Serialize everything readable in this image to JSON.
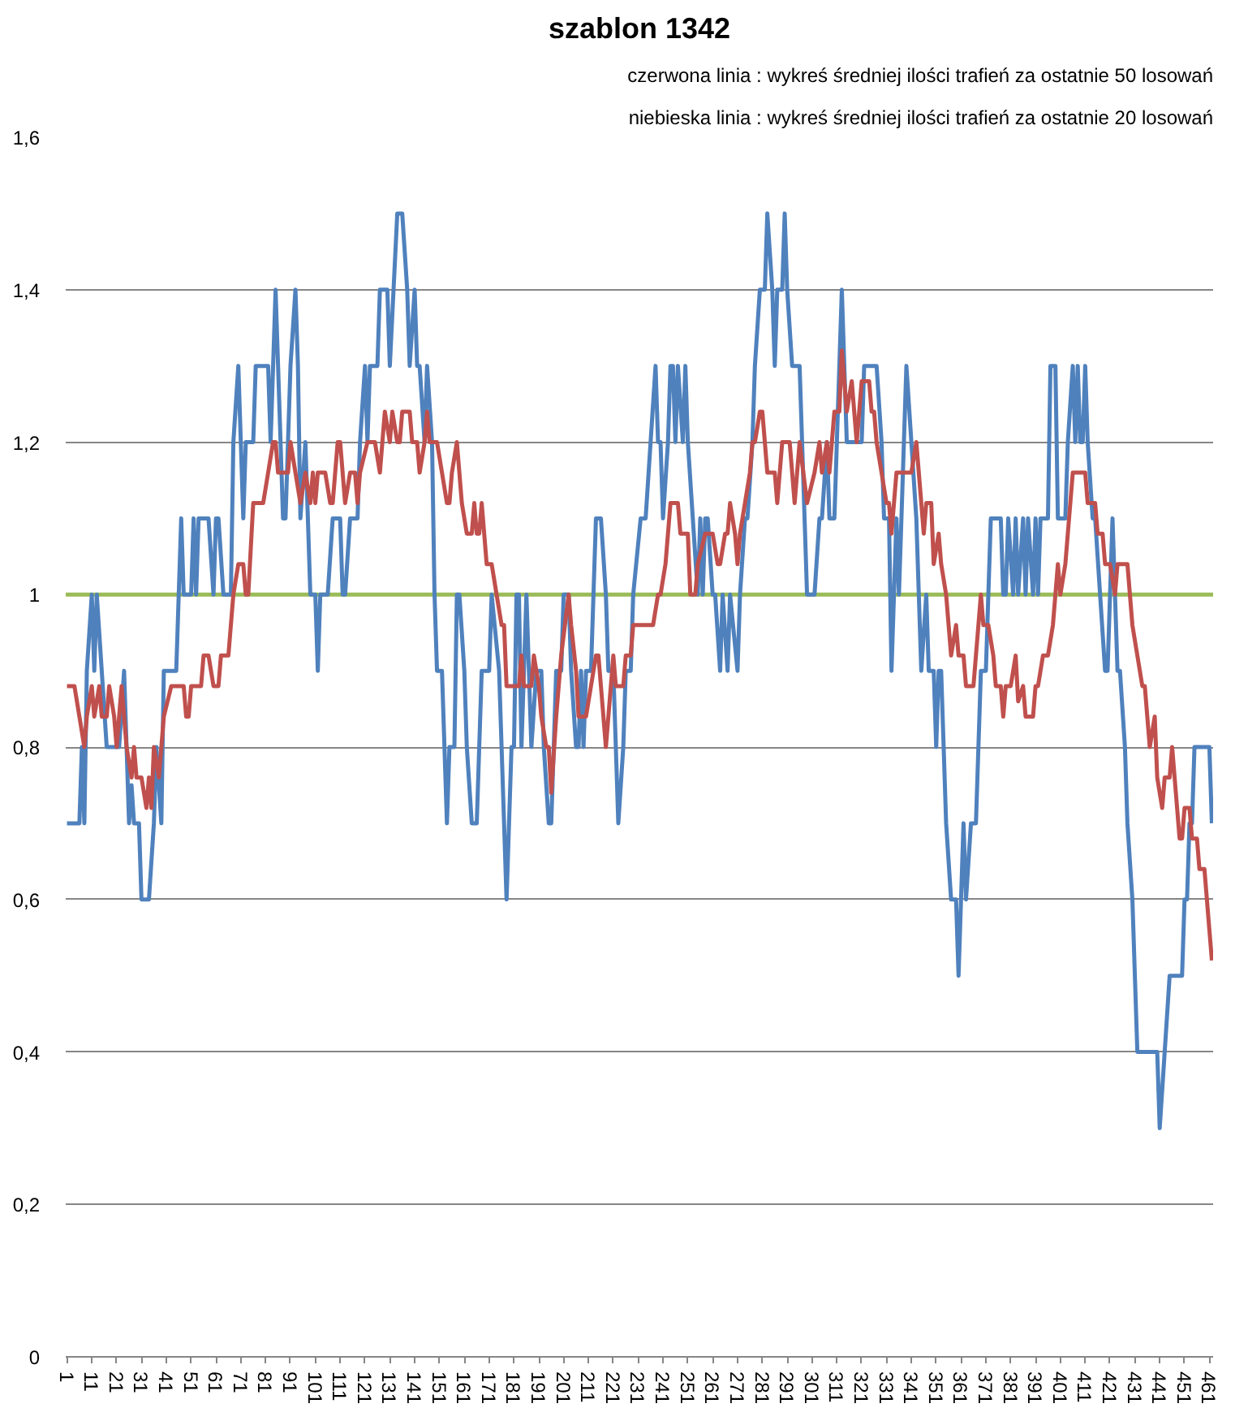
{
  "chart_data": {
    "type": "line",
    "title": "szablon 1342",
    "annotations": [
      "czerwona linia : wykreś średniej ilości trafień za ostatnie 50 losowań",
      "niebieska linia : wykreś średniej ilości trafień za ostatnie 20 losowań"
    ],
    "xlim": [
      0.5,
      462.5
    ],
    "xticks": [
      1,
      11,
      21,
      31,
      41,
      51,
      61,
      71,
      81,
      91,
      101,
      111,
      121,
      131,
      141,
      151,
      161,
      171,
      181,
      191,
      201,
      211,
      221,
      231,
      241,
      251,
      261,
      271,
      281,
      291,
      301,
      311,
      321,
      331,
      341,
      351,
      361,
      371,
      381,
      391,
      401,
      411,
      421,
      431,
      441,
      451,
      461
    ],
    "ylim": [
      0,
      1.6
    ],
    "yticks": [
      0,
      {
        "value": 0.2,
        "label": "0,2"
      },
      {
        "value": 0.4,
        "label": "0,4"
      },
      {
        "value": 0.6,
        "label": "0,6"
      },
      {
        "value": 0.8,
        "label": "0,8"
      },
      1,
      {
        "value": 1.2,
        "label": "1,2"
      },
      {
        "value": 1.4,
        "label": "1,4"
      },
      {
        "value": 1.6,
        "label": "1,6"
      }
    ],
    "grid": "y",
    "ref_lines": [
      {
        "axis": "y",
        "value": 1,
        "color": "#9bbb59"
      }
    ],
    "series": [
      {
        "color": "#4f81bd",
        "x": [
          1,
          6,
          7,
          8,
          9,
          11,
          12,
          13,
          15,
          17,
          22,
          24,
          25,
          26,
          27,
          28,
          30,
          31,
          34,
          36,
          37,
          39,
          40,
          45,
          46,
          47,
          48,
          51,
          52,
          53,
          54,
          58,
          60,
          61,
          62,
          64,
          67,
          68,
          70,
          71,
          72,
          73,
          76,
          77,
          82,
          83,
          85,
          86,
          88,
          89,
          91,
          93,
          94,
          95,
          97,
          98,
          99,
          101,
          102,
          103,
          106,
          108,
          111,
          112,
          113,
          115,
          118,
          119,
          121,
          122,
          123,
          126,
          127,
          130,
          131,
          134,
          136,
          138,
          139,
          141,
          142,
          143,
          145,
          146,
          148,
          149,
          150,
          152,
          154,
          155,
          157,
          158,
          159,
          161,
          162,
          164,
          166,
          167,
          168,
          171,
          172,
          175,
          176,
          178,
          179,
          180,
          181,
          182,
          183,
          184,
          185,
          186,
          188,
          190,
          192,
          193,
          195,
          196,
          198,
          200,
          201,
          203,
          204,
          206,
          207,
          208,
          209,
          210,
          212,
          213,
          214,
          216,
          218,
          219,
          221,
          222,
          223,
          225,
          226,
          228,
          229,
          232,
          234,
          236,
          238,
          239,
          240,
          241,
          243,
          244,
          245,
          246,
          247,
          249,
          250,
          251,
          253,
          255,
          256,
          257,
          258,
          259,
          261,
          262,
          264,
          265,
          267,
          268,
          271,
          272,
          274,
          275,
          277,
          278,
          280,
          282,
          283,
          285,
          286,
          287,
          289,
          290,
          291,
          293,
          296,
          298,
          299,
          302,
          304,
          305,
          307,
          308,
          310,
          311,
          313,
          314,
          315,
          319,
          321,
          322,
          327,
          329,
          330,
          332,
          333,
          335,
          336,
          338,
          339,
          341,
          343,
          344,
          345,
          347,
          348,
          350,
          351,
          352,
          353,
          354,
          355,
          357,
          359,
          360,
          361,
          362,
          363,
          365,
          367,
          369,
          371,
          373,
          377,
          378,
          379,
          380,
          382,
          383,
          384,
          386,
          387,
          388,
          390,
          391,
          392,
          393,
          396,
          397,
          399,
          400,
          403,
          404,
          406,
          407,
          408,
          409,
          410,
          411,
          412,
          414,
          415,
          417,
          419,
          420,
          422,
          423,
          424,
          425,
          427,
          428,
          430,
          432,
          436,
          440,
          441,
          443,
          445,
          446,
          447,
          448,
          449,
          450,
          451,
          452,
          453,
          454,
          455,
          456,
          457,
          458,
          459,
          460,
          461,
          462
        ],
        "values": [
          0.7,
          0.7,
          0.8,
          0.7,
          0.9,
          1.0,
          0.9,
          1.0,
          0.9,
          0.8,
          0.8,
          0.9,
          0.8,
          0.7,
          0.75,
          0.7,
          0.7,
          0.6,
          0.6,
          0.7,
          0.8,
          0.7,
          0.9,
          0.9,
          1.0,
          1.1,
          1.0,
          1.0,
          1.1,
          1.0,
          1.1,
          1.1,
          1.0,
          1.1,
          1.1,
          1.0,
          1.0,
          1.2,
          1.3,
          1.2,
          1.1,
          1.2,
          1.2,
          1.3,
          1.3,
          1.2,
          1.4,
          1.3,
          1.1,
          1.1,
          1.3,
          1.4,
          1.3,
          1.1,
          1.2,
          1.1,
          1.0,
          1.0,
          0.9,
          1.0,
          1.0,
          1.1,
          1.1,
          1.0,
          1.0,
          1.1,
          1.1,
          1.2,
          1.3,
          1.2,
          1.3,
          1.3,
          1.4,
          1.4,
          1.3,
          1.5,
          1.5,
          1.4,
          1.3,
          1.4,
          1.3,
          1.3,
          1.2,
          1.3,
          1.2,
          1.0,
          0.9,
          0.9,
          0.7,
          0.8,
          0.8,
          1.0,
          1.0,
          0.9,
          0.8,
          0.7,
          0.7,
          0.8,
          0.9,
          0.9,
          1.0,
          0.9,
          0.8,
          0.6,
          0.7,
          0.8,
          0.8,
          1.0,
          1.0,
          0.8,
          0.9,
          1.0,
          0.8,
          0.9,
          0.9,
          0.8,
          0.7,
          0.7,
          0.9,
          0.9,
          1.0,
          1.0,
          0.9,
          0.8,
          0.8,
          0.9,
          0.8,
          0.9,
          0.9,
          1.0,
          1.1,
          1.1,
          1.0,
          0.9,
          0.9,
          0.8,
          0.7,
          0.8,
          0.9,
          0.9,
          1.0,
          1.1,
          1.1,
          1.2,
          1.3,
          1.2,
          1.2,
          1.1,
          1.2,
          1.3,
          1.3,
          1.2,
          1.3,
          1.2,
          1.3,
          1.2,
          1.1,
          1.0,
          1.1,
          1.0,
          1.1,
          1.1,
          1.0,
          1.0,
          0.9,
          1.0,
          0.9,
          1.0,
          0.9,
          1.0,
          1.1,
          1.1,
          1.2,
          1.3,
          1.4,
          1.4,
          1.5,
          1.4,
          1.3,
          1.4,
          1.4,
          1.5,
          1.4,
          1.3,
          1.3,
          1.1,
          1.0,
          1.0,
          1.1,
          1.1,
          1.2,
          1.1,
          1.1,
          1.2,
          1.4,
          1.3,
          1.2,
          1.2,
          1.2,
          1.3,
          1.3,
          1.2,
          1.1,
          1.1,
          0.9,
          1.1,
          1.0,
          1.2,
          1.3,
          1.2,
          1.1,
          1.0,
          0.9,
          1.0,
          0.9,
          0.9,
          0.8,
          0.9,
          0.9,
          0.8,
          0.7,
          0.6,
          0.6,
          0.5,
          0.6,
          0.7,
          0.6,
          0.7,
          0.7,
          0.9,
          0.9,
          1.1,
          1.1,
          1.0,
          1.0,
          1.1,
          1.0,
          1.1,
          1.0,
          1.1,
          1.0,
          1.1,
          1.0,
          1.1,
          1.0,
          1.1,
          1.1,
          1.3,
          1.3,
          1.1,
          1.1,
          1.2,
          1.3,
          1.2,
          1.3,
          1.2,
          1.2,
          1.3,
          1.2,
          1.1,
          1.1,
          1.0,
          0.9,
          0.9,
          1.1,
          1.0,
          0.9,
          0.9,
          0.8,
          0.7,
          0.6,
          0.4,
          0.4,
          0.4,
          0.3,
          0.4,
          0.5,
          0.5,
          0.5,
          0.5,
          0.5,
          0.5,
          0.6,
          0.6,
          0.7,
          0.7,
          0.8,
          0.8,
          0.8,
          0.8,
          0.8,
          0.8,
          0.8,
          0.7
        ]
      },
      {
        "color": "#c0504d",
        "x": [
          1,
          4,
          6,
          8,
          9,
          11,
          12,
          14,
          15,
          17,
          18,
          20,
          21,
          23,
          25,
          27,
          28,
          29,
          31,
          33,
          34,
          35,
          36,
          38,
          39,
          40,
          43,
          48,
          49,
          50,
          51,
          55,
          56,
          58,
          60,
          62,
          63,
          66,
          68,
          70,
          72,
          73,
          74,
          76,
          80,
          82,
          84,
          85,
          86,
          90,
          91,
          93,
          95,
          97,
          99,
          100,
          101,
          102,
          105,
          107,
          108,
          110,
          111,
          113,
          115,
          117,
          118,
          119,
          122,
          125,
          127,
          128,
          129,
          131,
          132,
          134,
          135,
          136,
          139,
          140,
          142,
          143,
          145,
          146,
          147,
          150,
          152,
          154,
          155,
          156,
          158,
          159,
          160,
          162,
          164,
          165,
          166,
          167,
          168,
          170,
          172,
          174,
          176,
          177,
          178,
          183,
          184,
          185,
          188,
          189,
          191,
          192,
          194,
          195,
          196,
          198,
          200,
          203,
          204,
          206,
          207,
          210,
          212,
          214,
          215,
          216,
          218,
          220,
          221,
          222,
          225,
          226,
          228,
          229,
          237,
          239,
          240,
          242,
          244,
          247,
          248,
          251,
          252,
          254,
          255,
          258,
          261,
          263,
          264,
          266,
          267,
          268,
          270,
          271,
          272,
          274,
          276,
          277,
          278,
          280,
          281,
          283,
          286,
          287,
          288,
          289,
          292,
          293,
          294,
          296,
          299,
          302,
          304,
          305,
          307,
          308,
          310,
          312,
          313,
          315,
          317,
          319,
          320,
          321,
          324,
          325,
          326,
          327,
          329,
          331,
          332,
          333,
          335,
          341,
          343,
          344,
          346,
          347,
          349,
          350,
          352,
          353,
          355,
          356,
          357,
          359,
          360,
          362,
          363,
          366,
          367,
          369,
          370,
          372,
          374,
          375,
          377,
          378,
          379,
          381,
          383,
          384,
          386,
          387,
          390,
          391,
          392,
          394,
          396,
          398,
          399,
          400,
          401,
          403,
          404,
          405,
          406,
          411,
          412,
          415,
          416,
          418,
          419,
          421,
          423,
          424,
          428,
          429,
          430,
          432,
          434,
          435,
          436,
          437,
          439,
          440,
          442,
          443,
          445,
          446,
          447,
          448,
          449,
          450,
          451,
          452,
          453,
          454,
          455,
          456,
          457,
          458,
          459,
          460,
          461,
          462
        ],
        "values": [
          0.88,
          0.88,
          0.84,
          0.8,
          0.84,
          0.88,
          0.84,
          0.88,
          0.84,
          0.84,
          0.88,
          0.84,
          0.8,
          0.88,
          0.8,
          0.76,
          0.8,
          0.76,
          0.76,
          0.72,
          0.76,
          0.72,
          0.8,
          0.76,
          0.8,
          0.84,
          0.88,
          0.88,
          0.84,
          0.84,
          0.88,
          0.88,
          0.92,
          0.92,
          0.88,
          0.88,
          0.92,
          0.92,
          1.0,
          1.04,
          1.04,
          1.0,
          1.0,
          1.12,
          1.12,
          1.16,
          1.2,
          1.2,
          1.16,
          1.16,
          1.2,
          1.16,
          1.12,
          1.16,
          1.12,
          1.16,
          1.12,
          1.16,
          1.16,
          1.12,
          1.12,
          1.2,
          1.2,
          1.12,
          1.16,
          1.16,
          1.12,
          1.16,
          1.2,
          1.2,
          1.16,
          1.2,
          1.24,
          1.2,
          1.24,
          1.2,
          1.2,
          1.24,
          1.24,
          1.2,
          1.2,
          1.16,
          1.2,
          1.24,
          1.2,
          1.2,
          1.16,
          1.12,
          1.12,
          1.16,
          1.2,
          1.16,
          1.12,
          1.08,
          1.08,
          1.12,
          1.08,
          1.08,
          1.12,
          1.04,
          1.04,
          1.0,
          0.96,
          0.96,
          0.88,
          0.88,
          0.92,
          0.88,
          0.88,
          0.92,
          0.88,
          0.84,
          0.8,
          0.8,
          0.74,
          0.84,
          0.92,
          1.0,
          0.96,
          0.9,
          0.84,
          0.84,
          0.88,
          0.92,
          0.92,
          0.88,
          0.8,
          0.88,
          0.92,
          0.88,
          0.88,
          0.92,
          0.92,
          0.96,
          0.96,
          1.0,
          1.0,
          1.04,
          1.12,
          1.12,
          1.08,
          1.08,
          1.0,
          1.0,
          1.04,
          1.08,
          1.08,
          1.04,
          1.04,
          1.08,
          1.08,
          1.12,
          1.08,
          1.04,
          1.08,
          1.12,
          1.16,
          1.2,
          1.2,
          1.24,
          1.24,
          1.16,
          1.16,
          1.12,
          1.16,
          1.2,
          1.2,
          1.16,
          1.12,
          1.2,
          1.12,
          1.16,
          1.2,
          1.16,
          1.2,
          1.16,
          1.24,
          1.24,
          1.32,
          1.24,
          1.28,
          1.2,
          1.24,
          1.28,
          1.28,
          1.24,
          1.24,
          1.2,
          1.16,
          1.12,
          1.12,
          1.08,
          1.16,
          1.16,
          1.2,
          1.16,
          1.08,
          1.12,
          1.12,
          1.04,
          1.08,
          1.04,
          1.0,
          0.96,
          0.92,
          0.96,
          0.92,
          0.92,
          0.88,
          0.88,
          0.92,
          1.0,
          0.96,
          0.96,
          0.92,
          0.88,
          0.88,
          0.84,
          0.88,
          0.88,
          0.92,
          0.86,
          0.88,
          0.84,
          0.84,
          0.88,
          0.88,
          0.92,
          0.92,
          0.96,
          1.0,
          1.04,
          1.0,
          1.04,
          1.08,
          1.12,
          1.16,
          1.16,
          1.12,
          1.12,
          1.08,
          1.08,
          1.04,
          1.04,
          1.0,
          1.04,
          1.04,
          1.0,
          0.96,
          0.92,
          0.88,
          0.88,
          0.84,
          0.8,
          0.84,
          0.76,
          0.72,
          0.76,
          0.76,
          0.8,
          0.76,
          0.72,
          0.68,
          0.68,
          0.72,
          0.72,
          0.72,
          0.68,
          0.68,
          0.68,
          0.64,
          0.64,
          0.64,
          0.6,
          0.56,
          0.52
        ]
      }
    ]
  }
}
